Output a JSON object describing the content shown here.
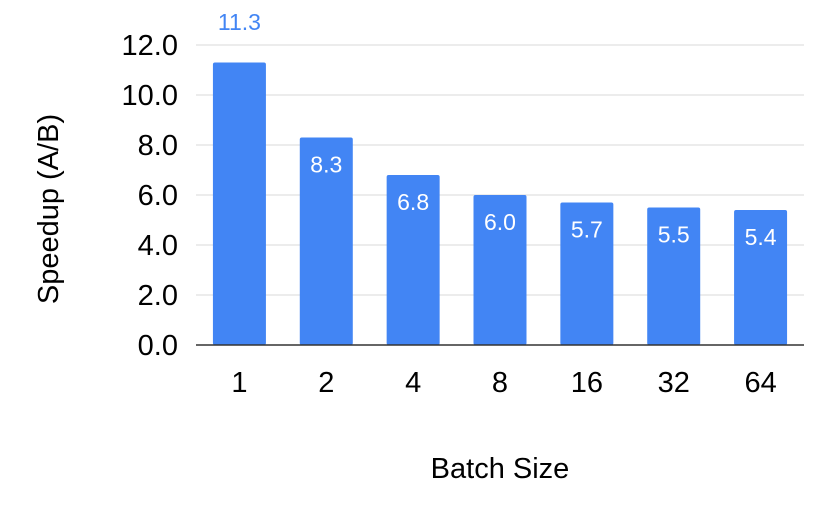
{
  "chart_data": {
    "type": "bar",
    "categories": [
      "1",
      "2",
      "4",
      "8",
      "16",
      "32",
      "64"
    ],
    "series": [
      {
        "values": [
          11.3,
          8.3,
          6.8,
          6.0,
          5.7,
          5.5,
          5.4
        ]
      }
    ],
    "data_labels": [
      "11.3",
      "8.3",
      "6.8",
      "6.0",
      "5.7",
      "5.5",
      "5.4"
    ],
    "xlabel": "Batch Size",
    "ylabel": "Speedup (A/B)",
    "ylim": [
      0,
      12
    ],
    "yticks": [
      "0.0",
      "2.0",
      "4.0",
      "6.0",
      "8.0",
      "10.0",
      "12.0"
    ],
    "grid": true,
    "legend": "none",
    "colors": {
      "bar": "#4285f4",
      "label_inside": "#ffffff",
      "label_outside": "#4285f4",
      "grid": "#d9d9d9",
      "axis": "#333333",
      "text": "#000000"
    }
  }
}
